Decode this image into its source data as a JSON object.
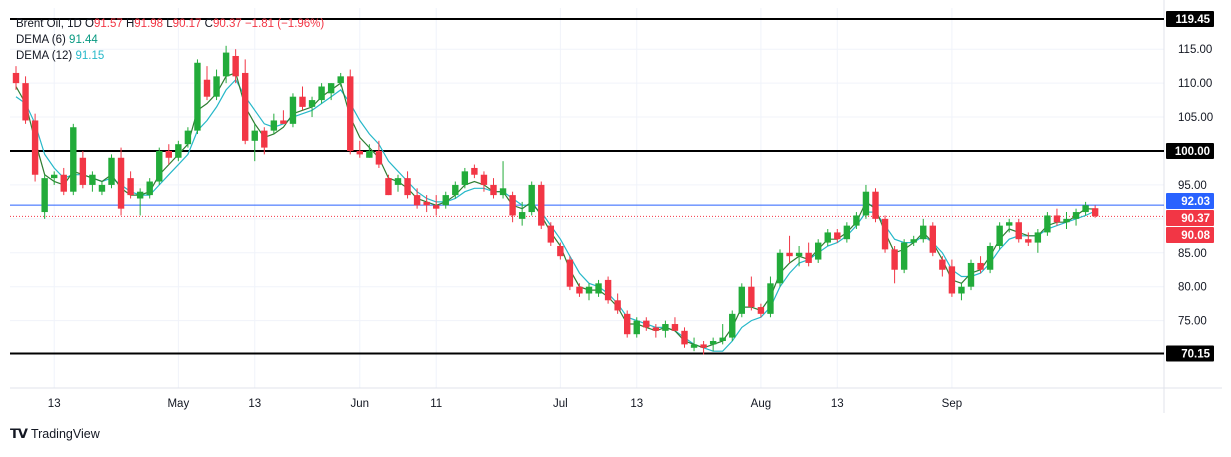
{
  "header": {
    "symbol": "Brent Oil, 1D",
    "o_label": "O",
    "o_value": "91.57",
    "h_label": "H",
    "h_value": "91.98",
    "l_label": "L",
    "l_value": "90.17",
    "c_label": "C",
    "c_value": "90.37",
    "change": "−1.81 (−1.96%)",
    "dema6_label": "DEMA (6)",
    "dema6_value": "91.44",
    "dema12_label": "DEMA (12)",
    "dema12_value": "91.15"
  },
  "footer": {
    "brand": "TradingView"
  },
  "chart_data": {
    "type": "candlestick",
    "ylim": [
      66.5,
      120.5
    ],
    "y_ticks": [
      75,
      80,
      85,
      90,
      95,
      105,
      110,
      115
    ],
    "x_tick_labels": [
      {
        "label": "13",
        "index": 4
      },
      {
        "label": "May",
        "index": 17
      },
      {
        "label": "13",
        "index": 25
      },
      {
        "label": "Jun",
        "index": 36
      },
      {
        "label": "11",
        "index": 44
      },
      {
        "label": "Jul",
        "index": 57
      },
      {
        "label": "13",
        "index": 65
      },
      {
        "label": "Aug",
        "index": 78
      },
      {
        "label": "13",
        "index": 86
      },
      {
        "label": "Sep",
        "index": 98
      }
    ],
    "horizontal_levels": [
      {
        "value": 119.45,
        "label": "119.45",
        "style": "black"
      },
      {
        "value": 100.0,
        "label": "100.00",
        "style": "black"
      },
      {
        "value": 70.15,
        "label": "70.15",
        "style": "black"
      }
    ],
    "price_tags": [
      {
        "value": 92.03,
        "label": "92.03",
        "color": "#2962ff"
      },
      {
        "value": 90.37,
        "label": "90.37",
        "color": "#f23645"
      },
      {
        "value": 90.08,
        "label": "90.08",
        "color": "#f23645"
      }
    ],
    "colors": {
      "up": "#089981",
      "up_fill": "#22ab3a",
      "down": "#f23645",
      "dema6": "#2e7d32",
      "dema12": "#26b8c9",
      "blue_line": "#2962ff"
    },
    "candles": [
      [
        111.5,
        112.5,
        109.0,
        110.0
      ],
      [
        110.0,
        111.0,
        104.0,
        104.5
      ],
      [
        104.5,
        105.5,
        95.5,
        96.5
      ],
      [
        91.0,
        96.5,
        90.0,
        96.0
      ],
      [
        96.0,
        97.0,
        95.0,
        96.5
      ],
      [
        96.5,
        97.5,
        93.5,
        94.0
      ],
      [
        94.0,
        104.0,
        93.5,
        103.5
      ],
      [
        99.0,
        100.0,
        94.5,
        95.0
      ],
      [
        95.0,
        97.0,
        94.0,
        96.5
      ],
      [
        94.0,
        95.5,
        93.5,
        95.0
      ],
      [
        95.0,
        99.5,
        94.5,
        99.0
      ],
      [
        99.0,
        100.5,
        90.5,
        91.5
      ],
      [
        96.0,
        97.0,
        93.0,
        93.5
      ],
      [
        93.0,
        94.5,
        90.5,
        94.0
      ],
      [
        93.5,
        96.0,
        93.0,
        95.5
      ],
      [
        95.5,
        100.5,
        95.0,
        100.0
      ],
      [
        100.0,
        101.0,
        98.0,
        99.0
      ],
      [
        99.0,
        101.5,
        98.5,
        101.0
      ],
      [
        101.0,
        103.5,
        100.5,
        103.0
      ],
      [
        103.0,
        113.5,
        102.5,
        113.0
      ],
      [
        110.5,
        112.5,
        107.5,
        108.0
      ],
      [
        108.0,
        112.0,
        107.5,
        111.0
      ],
      [
        111.0,
        115.5,
        110.0,
        114.5
      ],
      [
        114.0,
        115.0,
        110.0,
        111.0
      ],
      [
        111.5,
        113.5,
        101.0,
        101.5
      ],
      [
        101.5,
        104.0,
        98.5,
        103.0
      ],
      [
        103.0,
        103.5,
        99.5,
        100.5
      ],
      [
        103.0,
        105.5,
        102.5,
        104.5
      ],
      [
        104.5,
        106.0,
        104.0,
        104.0
      ],
      [
        104.0,
        108.5,
        103.5,
        108.0
      ],
      [
        108.0,
        109.5,
        106.0,
        106.5
      ],
      [
        106.5,
        108.0,
        105.0,
        107.5
      ],
      [
        107.5,
        110.0,
        107.0,
        109.5
      ],
      [
        108.5,
        110.0,
        107.5,
        110.0
      ],
      [
        110.0,
        111.5,
        109.5,
        111.0
      ],
      [
        111.0,
        112.0,
        99.5,
        100.0
      ],
      [
        100.0,
        101.5,
        99.0,
        99.5
      ],
      [
        99.0,
        101.0,
        99.0,
        100.0
      ],
      [
        100.0,
        101.5,
        97.5,
        98.0
      ],
      [
        96.0,
        96.5,
        93.5,
        93.5
      ],
      [
        95.0,
        96.5,
        94.0,
        96.0
      ],
      [
        96.0,
        97.0,
        93.0,
        93.5
      ],
      [
        93.5,
        94.5,
        91.5,
        92.0
      ],
      [
        92.5,
        93.5,
        91.0,
        92.0
      ],
      [
        92.0,
        93.5,
        90.5,
        91.5
      ],
      [
        92.0,
        94.0,
        91.5,
        93.5
      ],
      [
        93.5,
        95.5,
        93.0,
        95.0
      ],
      [
        95.0,
        97.5,
        94.5,
        97.0
      ],
      [
        97.5,
        98.0,
        96.0,
        96.5
      ],
      [
        96.5,
        97.0,
        94.0,
        95.0
      ],
      [
        95.0,
        96.0,
        93.0,
        93.5
      ],
      [
        93.5,
        98.5,
        93.0,
        94.5
      ],
      [
        93.5,
        94.0,
        89.5,
        90.5
      ],
      [
        90.0,
        92.5,
        89.0,
        91.0
      ],
      [
        91.0,
        95.5,
        90.5,
        95.0
      ],
      [
        95.0,
        95.5,
        88.5,
        89.0
      ],
      [
        89.0,
        89.5,
        86.0,
        86.5
      ],
      [
        86.0,
        86.5,
        84.0,
        84.5
      ],
      [
        84.0,
        84.5,
        79.5,
        80.0
      ],
      [
        80.0,
        80.5,
        78.5,
        79.0
      ],
      [
        79.0,
        80.5,
        78.0,
        80.0
      ],
      [
        79.0,
        81.0,
        78.5,
        80.5
      ],
      [
        81.0,
        81.5,
        77.5,
        78.0
      ],
      [
        78.0,
        79.0,
        76.0,
        76.5
      ],
      [
        76.0,
        76.5,
        72.5,
        73.0
      ],
      [
        73.0,
        75.5,
        72.5,
        75.0
      ],
      [
        75.0,
        75.5,
        73.5,
        74.0
      ],
      [
        74.0,
        74.5,
        72.5,
        73.5
      ],
      [
        73.5,
        75.0,
        72.5,
        74.5
      ],
      [
        74.5,
        75.5,
        73.5,
        73.5
      ],
      [
        73.5,
        74.0,
        71.0,
        71.5
      ],
      [
        71.0,
        72.5,
        70.5,
        71.5
      ],
      [
        71.5,
        72.0,
        70.0,
        71.0
      ],
      [
        71.5,
        72.5,
        70.5,
        72.0
      ],
      [
        72.0,
        74.5,
        71.5,
        72.5
      ],
      [
        72.5,
        76.5,
        72.0,
        76.0
      ],
      [
        76.0,
        80.5,
        75.5,
        80.0
      ],
      [
        80.0,
        81.5,
        76.5,
        77.0
      ],
      [
        77.0,
        77.5,
        75.5,
        76.0
      ],
      [
        76.0,
        81.5,
        75.5,
        80.5
      ],
      [
        80.5,
        85.5,
        80.0,
        85.0
      ],
      [
        85.0,
        87.5,
        83.5,
        84.5
      ],
      [
        84.5,
        86.0,
        83.0,
        85.0
      ],
      [
        85.0,
        86.5,
        83.0,
        83.5
      ],
      [
        84.0,
        87.0,
        83.5,
        86.5
      ],
      [
        86.5,
        88.5,
        86.0,
        88.0
      ],
      [
        88.0,
        88.5,
        86.5,
        87.0
      ],
      [
        87.0,
        89.5,
        86.5,
        89.0
      ],
      [
        89.0,
        91.0,
        88.5,
        90.5
      ],
      [
        90.5,
        95.0,
        90.0,
        94.0
      ],
      [
        94.0,
        94.5,
        89.5,
        90.0
      ],
      [
        90.0,
        90.5,
        85.0,
        85.5
      ],
      [
        85.5,
        86.0,
        80.5,
        82.5
      ],
      [
        82.5,
        87.0,
        82.0,
        86.5
      ],
      [
        86.5,
        87.5,
        86.0,
        87.0
      ],
      [
        87.0,
        90.0,
        86.5,
        89.0
      ],
      [
        89.0,
        89.5,
        84.5,
        85.0
      ],
      [
        84.0,
        84.5,
        81.5,
        82.5
      ],
      [
        83.0,
        84.0,
        78.5,
        79.0
      ],
      [
        79.0,
        80.5,
        78.0,
        80.0
      ],
      [
        80.0,
        84.0,
        79.5,
        83.5
      ],
      [
        83.5,
        84.5,
        82.0,
        82.5
      ],
      [
        82.5,
        86.5,
        82.0,
        86.0
      ],
      [
        86.0,
        89.5,
        85.5,
        89.0
      ],
      [
        89.0,
        90.0,
        88.0,
        89.5
      ],
      [
        89.5,
        90.0,
        86.5,
        87.0
      ],
      [
        87.0,
        88.0,
        86.0,
        86.5
      ],
      [
        86.5,
        88.5,
        85.0,
        88.0
      ],
      [
        88.0,
        91.0,
        87.5,
        90.5
      ],
      [
        90.5,
        91.5,
        89.0,
        89.5
      ],
      [
        89.5,
        91.0,
        88.5,
        90.0
      ],
      [
        90.0,
        91.5,
        89.0,
        91.0
      ],
      [
        91.0,
        92.5,
        90.5,
        92.0
      ],
      [
        91.57,
        91.98,
        90.17,
        90.37
      ]
    ],
    "dema6": [
      109.5,
      107.0,
      101.5,
      96.5,
      95.5,
      95.0,
      97.0,
      96.5,
      96.0,
      95.5,
      96.5,
      94.5,
      93.5,
      93.5,
      94.0,
      96.5,
      98.0,
      99.5,
      101.0,
      106.0,
      107.0,
      108.5,
      111.0,
      111.5,
      106.5,
      104.0,
      102.0,
      102.5,
      103.5,
      105.5,
      106.0,
      106.5,
      108.0,
      109.0,
      110.0,
      105.0,
      102.0,
      100.5,
      99.0,
      96.0,
      95.5,
      94.5,
      93.0,
      92.5,
      92.0,
      92.5,
      93.5,
      95.0,
      95.5,
      95.0,
      94.0,
      94.0,
      92.0,
      91.5,
      92.5,
      90.5,
      88.0,
      86.0,
      82.5,
      80.0,
      79.5,
      79.5,
      78.5,
      77.0,
      74.5,
      74.5,
      74.0,
      73.5,
      74.0,
      73.5,
      72.0,
      71.5,
      71.0,
      71.5,
      72.0,
      74.0,
      77.0,
      77.0,
      76.5,
      78.5,
      82.0,
      83.5,
      84.5,
      84.0,
      85.5,
      87.0,
      87.0,
      88.0,
      89.5,
      92.5,
      91.5,
      88.0,
      85.0,
      85.5,
      86.5,
      88.0,
      86.5,
      84.0,
      81.0,
      80.5,
      82.0,
      82.5,
      84.5,
      87.0,
      88.5,
      88.0,
      87.5,
      87.5,
      89.0,
      89.5,
      89.5,
      90.5,
      91.5,
      91.44
    ],
    "dema12": [
      108.0,
      107.0,
      104.0,
      99.5,
      97.5,
      96.0,
      96.5,
      96.5,
      96.0,
      95.5,
      96.0,
      95.0,
      94.0,
      93.5,
      93.5,
      95.0,
      96.5,
      98.0,
      99.5,
      103.0,
      104.5,
      106.5,
      109.0,
      110.5,
      108.0,
      106.0,
      104.0,
      103.5,
      104.0,
      105.0,
      105.5,
      106.0,
      107.0,
      108.0,
      109.0,
      107.0,
      104.5,
      102.5,
      101.0,
      98.5,
      97.0,
      95.5,
      94.0,
      93.0,
      92.5,
      92.5,
      93.0,
      94.0,
      94.5,
      94.5,
      94.0,
      94.0,
      93.0,
      92.0,
      92.0,
      91.0,
      89.0,
      87.0,
      84.5,
      82.0,
      80.5,
      80.0,
      79.0,
      77.5,
      75.5,
      75.0,
      74.5,
      74.0,
      74.0,
      73.5,
      72.5,
      71.5,
      71.0,
      70.5,
      70.5,
      72.0,
      74.0,
      75.0,
      75.5,
      77.0,
      80.0,
      82.0,
      83.5,
      84.0,
      85.0,
      86.0,
      86.5,
      87.5,
      89.0,
      91.0,
      91.0,
      89.0,
      87.0,
      86.5,
      86.5,
      87.5,
      86.5,
      85.0,
      82.5,
      81.5,
      81.5,
      82.0,
      83.5,
      85.5,
      87.0,
      87.5,
      87.5,
      87.5,
      88.5,
      89.0,
      89.5,
      90.0,
      90.5,
      91.15
    ]
  }
}
